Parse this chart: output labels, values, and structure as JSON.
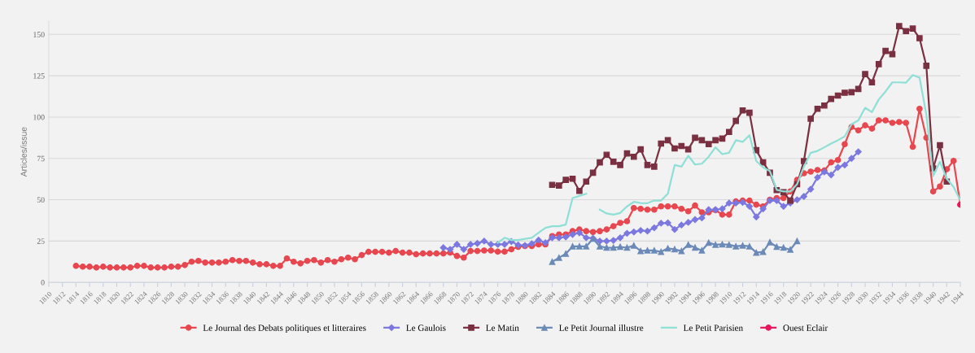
{
  "chart_data": {
    "type": "line",
    "ylabel": "Articles/issue",
    "xlim": [
      1810,
      1944
    ],
    "ylim": [
      0,
      158
    ],
    "yticks": [
      0,
      25,
      50,
      75,
      100,
      125,
      150
    ],
    "xticks": [
      1810,
      1812,
      1814,
      1816,
      1818,
      1820,
      1822,
      1824,
      1826,
      1828,
      1830,
      1832,
      1834,
      1836,
      1838,
      1840,
      1842,
      1844,
      1846,
      1848,
      1850,
      1852,
      1854,
      1856,
      1858,
      1860,
      1862,
      1864,
      1866,
      1868,
      1870,
      1872,
      1874,
      1876,
      1878,
      1880,
      1882,
      1884,
      1886,
      1888,
      1890,
      1892,
      1894,
      1896,
      1898,
      1900,
      1902,
      1904,
      1906,
      1908,
      1910,
      1912,
      1914,
      1916,
      1918,
      1920,
      1922,
      1924,
      1926,
      1928,
      1930,
      1932,
      1934,
      1936,
      1938,
      1940,
      1942,
      1944
    ],
    "grid": "y",
    "legend": "bottom",
    "series": [
      {
        "name": "Le Journal des Debats politiques et litteraires",
        "color": "#e8474f",
        "marker": "circle",
        "x": [
          1814,
          1815,
          1816,
          1817,
          1818,
          1819,
          1820,
          1821,
          1822,
          1823,
          1824,
          1825,
          1826,
          1827,
          1828,
          1829,
          1830,
          1831,
          1832,
          1833,
          1834,
          1835,
          1836,
          1837,
          1838,
          1839,
          1840,
          1841,
          1842,
          1843,
          1844,
          1845,
          1846,
          1847,
          1848,
          1849,
          1850,
          1851,
          1852,
          1853,
          1854,
          1855,
          1856,
          1857,
          1858,
          1859,
          1860,
          1861,
          1862,
          1863,
          1864,
          1865,
          1866,
          1867,
          1868,
          1869,
          1870,
          1871,
          1872,
          1873,
          1874,
          1875,
          1876,
          1877,
          1878,
          1879,
          1880,
          1881,
          1882,
          1883,
          1884,
          1885,
          1886,
          1887,
          1888,
          1889,
          1890,
          1891,
          1892,
          1893,
          1894,
          1895,
          1896,
          1897,
          1898,
          1899,
          1900,
          1901,
          1902,
          1903,
          1904,
          1905,
          1906,
          1907,
          1908,
          1909,
          1910,
          1911,
          1912,
          1913,
          1914,
          1915,
          1916,
          1917,
          1918,
          1919,
          1920,
          1921,
          1922,
          1923,
          1924,
          1925,
          1926,
          1927,
          1928,
          1929,
          1930,
          1931,
          1932,
          1933,
          1934,
          1935,
          1936,
          1937,
          1938,
          1939,
          1940,
          1941,
          1942,
          1943,
          1944
        ],
        "values": [
          10,
          9.5,
          9.5,
          9,
          9.5,
          9,
          9,
          9,
          9,
          10,
          10,
          9,
          9,
          9,
          9.5,
          9.5,
          10.5,
          12.5,
          13,
          12,
          12,
          12,
          12.5,
          13.5,
          13,
          13,
          12,
          11,
          11,
          10,
          10,
          14.5,
          12.5,
          11.5,
          13,
          13.5,
          12,
          13.5,
          12.5,
          14,
          15,
          14,
          16.5,
          18.5,
          18.5,
          18.5,
          18,
          19,
          18,
          18,
          17,
          17.5,
          17.5,
          17.5,
          17.5,
          18,
          16,
          15,
          19,
          19,
          19.3,
          19.3,
          18.6,
          18.6,
          20,
          21.5,
          22,
          22,
          23,
          23,
          28,
          29,
          29,
          31,
          32,
          31,
          30.5,
          31,
          32,
          34,
          36,
          37,
          45,
          44.5,
          44,
          44,
          46,
          46,
          46,
          44.5,
          43,
          46.5,
          42.4,
          42.4,
          43.7,
          41,
          41,
          49,
          49.5,
          49.5,
          47,
          46,
          50,
          51,
          51,
          55,
          62,
          66,
          67,
          68,
          67.7,
          72.6,
          74,
          83.6,
          94,
          92,
          95,
          93,
          98,
          98,
          96.5,
          97,
          96.5,
          82,
          105,
          87.5,
          55,
          58,
          68.5,
          73.5,
          47
        ]
      },
      {
        "name": "Le Gaulois",
        "color": "#7b78e0",
        "marker": "diamond",
        "x": [
          1868,
          1869,
          1870,
          1871,
          1872,
          1873,
          1874,
          1875,
          1876,
          1877,
          1878,
          1879,
          1880,
          1881,
          1882,
          1883,
          1884,
          1885,
          1886,
          1887,
          1888,
          1889,
          1890,
          1891,
          1892,
          1893,
          1894,
          1895,
          1896,
          1897,
          1898,
          1899,
          1900,
          1901,
          1902,
          1903,
          1904,
          1905,
          1906,
          1907,
          1908,
          1909,
          1910,
          1911,
          1912,
          1913,
          1914,
          1915,
          1916,
          1917,
          1918,
          1919,
          1920,
          1921,
          1922,
          1923,
          1924,
          1925,
          1926,
          1927,
          1928,
          1929
        ],
        "values": [
          21,
          20,
          23,
          20,
          23,
          23.6,
          25,
          23,
          23,
          23,
          24.7,
          22.6,
          22.3,
          23.4,
          25.6,
          24,
          27,
          27,
          27.5,
          29,
          30,
          27,
          26.7,
          25,
          25,
          25.4,
          27,
          29.7,
          30.5,
          31.4,
          31,
          33,
          35.8,
          36,
          32,
          34.7,
          36.3,
          38,
          39,
          44,
          44,
          44.5,
          48,
          48,
          48.4,
          46,
          39.6,
          44.5,
          49.5,
          49.5,
          46,
          48,
          50,
          52,
          56.4,
          63.5,
          66.8,
          65,
          69.6,
          71,
          75,
          79
        ]
      },
      {
        "name": "Le Matin",
        "color": "#7a3040",
        "marker": "square",
        "x": [
          1884,
          1885,
          1886,
          1887,
          1888,
          1889,
          1890,
          1891,
          1892,
          1893,
          1894,
          1895,
          1896,
          1897,
          1898,
          1899,
          1900,
          1901,
          1902,
          1903,
          1904,
          1905,
          1906,
          1907,
          1908,
          1909,
          1910,
          1911,
          1912,
          1913,
          1914,
          1915,
          1916,
          1917,
          1918,
          1919,
          1920,
          1921,
          1922,
          1923,
          1924,
          1925,
          1926,
          1927,
          1928,
          1929,
          1930,
          1931,
          1932,
          1933,
          1934,
          1935,
          1936,
          1937,
          1938,
          1939,
          1940,
          1941,
          1942
        ],
        "values": [
          59,
          58.6,
          62,
          62.7,
          55.3,
          61,
          66.3,
          72.6,
          77.2,
          73,
          71,
          78,
          76,
          80.5,
          71,
          70,
          84,
          86,
          81,
          82.5,
          80.5,
          87.5,
          86,
          83.7,
          86,
          87,
          91,
          97.7,
          104,
          102.6,
          80,
          72.6,
          66.3,
          55.8,
          54.5,
          49.5,
          59.4,
          73.4,
          99,
          105,
          107,
          111,
          113,
          114.7,
          115,
          117,
          126,
          121,
          132,
          140,
          138,
          155,
          152,
          153.5,
          147.7,
          131,
          69,
          83,
          61
        ]
      },
      {
        "name": "Le Petit Journal illustre",
        "color": "#6b8ab8",
        "marker": "triangle",
        "x": [
          1884,
          1885,
          1886,
          1887,
          1888,
          1889,
          1890,
          1891,
          1892,
          1893,
          1894,
          1895,
          1896,
          1897,
          1898,
          1899,
          1900,
          1901,
          1902,
          1903,
          1904,
          1905,
          1906,
          1907,
          1908,
          1909,
          1910,
          1911,
          1912,
          1913,
          1914,
          1915,
          1916,
          1917,
          1918,
          1919,
          1920
        ],
        "values": [
          12.4,
          14.9,
          17.3,
          21.8,
          21.8,
          21.8,
          26.4,
          21.8,
          21,
          21,
          21.5,
          21,
          22.3,
          19,
          19.3,
          19.3,
          18.5,
          20.6,
          20,
          19,
          22.8,
          21,
          19.3,
          24,
          22.8,
          23,
          22.8,
          21.8,
          22.3,
          21.8,
          18,
          18.5,
          24.3,
          21.5,
          21,
          19.8,
          25
        ]
      },
      {
        "name": "Le Petit Parisien",
        "color": "#8ee0d6",
        "marker": "none",
        "x": [
          1876,
          1877,
          1878,
          1879,
          1880,
          1881,
          1882,
          1883,
          1884,
          1885,
          1886,
          1887,
          1888,
          1889,
          1890,
          1891,
          1892,
          1893,
          1894,
          1895,
          1896,
          1897,
          1898,
          1899,
          1900,
          1901,
          1902,
          1903,
          1904,
          1905,
          1906,
          1907,
          1908,
          1909,
          1910,
          1911,
          1912,
          1913,
          1914,
          1915,
          1916,
          1917,
          1918,
          1919,
          1920,
          1921,
          1922,
          1923,
          1924,
          1925,
          1926,
          1927,
          1928,
          1929,
          1930,
          1931,
          1932,
          1933,
          1934,
          1935,
          1936,
          1937,
          1938,
          1939,
          1940,
          1941,
          1942,
          1943,
          1944
        ],
        "values": [
          24,
          27,
          25.6,
          25.6,
          26.4,
          27,
          30,
          33,
          34,
          34,
          35,
          51,
          52.3,
          53.6,
          null,
          44,
          41.7,
          41,
          42,
          46,
          48.7,
          48,
          47.9,
          49.5,
          49.5,
          53.6,
          71,
          70,
          76.6,
          71.3,
          71.8,
          76,
          81.7,
          77.6,
          78.4,
          86,
          85,
          89,
          73.4,
          69.6,
          67.3,
          56,
          55,
          55,
          59.4,
          70,
          78.4,
          79.5,
          81.7,
          84,
          86,
          88.3,
          95.7,
          98,
          105.6,
          103,
          110.6,
          115.5,
          121,
          121,
          120.8,
          125.4,
          123.8,
          101.5,
          64.4,
          73,
          62.7,
          57.8,
          49.5
        ]
      },
      {
        "name": "Ouest Eclair",
        "color": "#e8175d",
        "marker": "circle",
        "x": [
          1944
        ],
        "values": [
          47
        ]
      }
    ]
  }
}
